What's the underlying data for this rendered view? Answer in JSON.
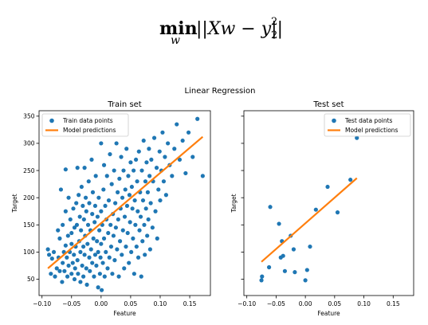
{
  "formula": {
    "op": "min",
    "sub": "w",
    "body": "||Xw − y||",
    "sup": "2",
    "sub2": "2"
  },
  "suptitle": "Linear Regression",
  "colors": {
    "points": "#1f77b4",
    "line": "#ff7f0e",
    "axis": "#000000"
  },
  "chart_data": [
    {
      "type": "scatter",
      "title": "Train set",
      "xlabel": "Feature",
      "ylabel": "Target",
      "xlim": [
        -0.105,
        0.185
      ],
      "ylim": [
        20,
        360
      ],
      "xticks": [
        -0.1,
        -0.05,
        0.0,
        0.05,
        0.1,
        0.15
      ],
      "xtick_labels": [
        "−0.10",
        "−0.05",
        "0.00",
        "0.05",
        "0.10",
        "0.15"
      ],
      "yticks": [
        50,
        100,
        150,
        200,
        250,
        300,
        350
      ],
      "ytick_labels": [
        "50",
        "100",
        "150",
        "200",
        "250",
        "300",
        "350"
      ],
      "legend": {
        "position": "top-left",
        "entries": [
          "Train data points",
          "Model predictions"
        ]
      },
      "series": [
        {
          "name": "Train data points",
          "kind": "points",
          "points": [
            [
              -0.09,
              105
            ],
            [
              -0.088,
              95
            ],
            [
              -0.085,
              60
            ],
            [
              -0.083,
              88
            ],
            [
              -0.08,
              100
            ],
            [
              -0.078,
              55
            ],
            [
              -0.075,
              70
            ],
            [
              -0.073,
              140
            ],
            [
              -0.072,
              90
            ],
            [
              -0.07,
              65
            ],
            [
              -0.07,
              125
            ],
            [
              -0.068,
              215
            ],
            [
              -0.066,
              45
            ],
            [
              -0.065,
              150
            ],
            [
              -0.065,
              80
            ],
            [
              -0.063,
              100
            ],
            [
              -0.062,
              65
            ],
            [
              -0.06,
              175
            ],
            [
              -0.06,
              112
            ],
            [
              -0.06,
              252
            ],
            [
              -0.058,
              90
            ],
            [
              -0.057,
              55
            ],
            [
              -0.056,
              130
            ],
            [
              -0.055,
              200
            ],
            [
              -0.055,
              75
            ],
            [
              -0.053,
              100
            ],
            [
              -0.052,
              160
            ],
            [
              -0.05,
              115
            ],
            [
              -0.05,
              60
            ],
            [
              -0.05,
              135
            ],
            [
              -0.048,
              80
            ],
            [
              -0.047,
              180
            ],
            [
              -0.046,
              95
            ],
            [
              -0.045,
              145
            ],
            [
              -0.045,
              50
            ],
            [
              -0.044,
              70
            ],
            [
              -0.043,
              110
            ],
            [
              -0.042,
              190
            ],
            [
              -0.041,
              150
            ],
            [
              -0.04,
              85
            ],
            [
              -0.04,
              255
            ],
            [
              -0.039,
              60
            ],
            [
              -0.038,
              205
            ],
            [
              -0.037,
              120
            ],
            [
              -0.036,
              165
            ],
            [
              -0.035,
              45
            ],
            [
              -0.035,
              100
            ],
            [
              -0.034,
              140
            ],
            [
              -0.033,
              220
            ],
            [
              -0.032,
              75
            ],
            [
              -0.031,
              185
            ],
            [
              -0.03,
              110
            ],
            [
              -0.03,
              55
            ],
            [
              -0.029,
              160
            ],
            [
              -0.028,
              95
            ],
            [
              -0.028,
              255
            ],
            [
              -0.027,
              130
            ],
            [
              -0.026,
              200
            ],
            [
              -0.025,
              70
            ],
            [
              -0.025,
              175
            ],
            [
              -0.024,
              40
            ],
            [
              -0.023,
              115
            ],
            [
              -0.022,
              150
            ],
            [
              -0.021,
              230
            ],
            [
              -0.02,
              90
            ],
            [
              -0.02,
              190
            ],
            [
              -0.019,
              65
            ],
            [
              -0.018,
              140
            ],
            [
              -0.017,
              105
            ],
            [
              -0.016,
              270
            ],
            [
              -0.015,
              170
            ],
            [
              -0.015,
              80
            ],
            [
              -0.014,
              210
            ],
            [
              -0.013,
              125
            ],
            [
              -0.012,
              55
            ],
            [
              -0.011,
              155
            ],
            [
              -0.01,
              95
            ],
            [
              -0.01,
              185
            ],
            [
              -0.009,
              240
            ],
            [
              -0.008,
              75
            ],
            [
              -0.007,
              120
            ],
            [
              -0.006,
              165
            ],
            [
              -0.005,
              35
            ],
            [
              -0.005,
              100
            ],
            [
              -0.004,
              200
            ],
            [
              -0.003,
              140
            ],
            [
              -0.002,
              60
            ],
            [
              -0.001,
              90
            ],
            [
              0.0,
              175
            ],
            [
              0.0,
              115
            ],
            [
              0.0,
              300
            ],
            [
              0.001,
              30
            ],
            [
              0.002,
              150
            ],
            [
              0.003,
              80
            ],
            [
              0.004,
              215
            ],
            [
              0.005,
              125
            ],
            [
              0.005,
              260
            ],
            [
              0.006,
              55
            ],
            [
              0.007,
              185
            ],
            [
              0.008,
              100
            ],
            [
              0.009,
              160
            ],
            [
              0.01,
              240
            ],
            [
              0.011,
              70
            ],
            [
              0.012,
              135
            ],
            [
              0.013,
              195
            ],
            [
              0.014,
              90
            ],
            [
              0.015,
              280
            ],
            [
              0.016,
              150
            ],
            [
              0.017,
              110
            ],
            [
              0.018,
              225
            ],
            [
              0.019,
              60
            ],
            [
              0.02,
              170
            ],
            [
              0.021,
              130
            ],
            [
              0.022,
              250
            ],
            [
              0.023,
              85
            ],
            [
              0.024,
              190
            ],
            [
              0.025,
              145
            ],
            [
              0.026,
              300
            ],
            [
              0.027,
              105
            ],
            [
              0.028,
              210
            ],
            [
              0.029,
              160
            ],
            [
              0.03,
              55
            ],
            [
              0.031,
              235
            ],
            [
              0.032,
              120
            ],
            [
              0.033,
              180
            ],
            [
              0.034,
              275
            ],
            [
              0.035,
              95
            ],
            [
              0.036,
              200
            ],
            [
              0.037,
              140
            ],
            [
              0.038,
              250
            ],
            [
              0.039,
              70
            ],
            [
              0.04,
              165
            ],
            [
              0.041,
              215
            ],
            [
              0.042,
              110
            ],
            [
              0.043,
              290
            ],
            [
              0.044,
              185
            ],
            [
              0.045,
              135
            ],
            [
              0.046,
              240
            ],
            [
              0.047,
              80
            ],
            [
              0.048,
              205
            ],
            [
              0.049,
              155
            ],
            [
              0.05,
              265
            ],
            [
              0.051,
              100
            ],
            [
              0.052,
              220
            ],
            [
              0.053,
              180
            ],
            [
              0.054,
              125
            ],
            [
              0.055,
              250
            ],
            [
              0.056,
              60
            ],
            [
              0.057,
              195
            ],
            [
              0.058,
              150
            ],
            [
              0.059,
              270
            ],
            [
              0.06,
              110
            ],
            [
              0.061,
              230
            ],
            [
              0.062,
              175
            ],
            [
              0.063,
              90
            ],
            [
              0.064,
              285
            ],
            [
              0.065,
              140
            ],
            [
              0.066,
              210
            ],
            [
              0.067,
              165
            ],
            [
              0.068,
              55
            ],
            [
              0.069,
              250
            ],
            [
              0.07,
              120
            ],
            [
              0.071,
              195
            ],
            [
              0.072,
              305
            ],
            [
              0.073,
              150
            ],
            [
              0.074,
              95
            ],
            [
              0.075,
              230
            ],
            [
              0.076,
              180
            ],
            [
              0.077,
              265
            ],
            [
              0.078,
              130
            ],
            [
              0.079,
              210
            ],
            [
              0.08,
              160
            ],
            [
              0.081,
              290
            ],
            [
              0.082,
              240
            ],
            [
              0.083,
              105
            ],
            [
              0.084,
              190
            ],
            [
              0.085,
              270
            ],
            [
              0.087,
              145
            ],
            [
              0.088,
              230
            ],
            [
              0.09,
              310
            ],
            [
              0.092,
              175
            ],
            [
              0.094,
              255
            ],
            [
              0.095,
              125
            ],
            [
              0.097,
              215
            ],
            [
              0.099,
              285
            ],
            [
              0.1,
              195
            ],
            [
              0.102,
              250
            ],
            [
              0.104,
              320
            ],
            [
              0.106,
              230
            ],
            [
              0.108,
              275
            ],
            [
              0.11,
              205
            ],
            [
              0.113,
              300
            ],
            [
              0.116,
              260
            ],
            [
              0.12,
              240
            ],
            [
              0.124,
              290
            ],
            [
              0.128,
              335
            ],
            [
              0.133,
              270
            ],
            [
              0.138,
              305
            ],
            [
              0.143,
              245
            ],
            [
              0.148,
              320
            ],
            [
              0.155,
              275
            ],
            [
              0.163,
              345
            ],
            [
              0.172,
              240
            ]
          ]
        },
        {
          "name": "Model predictions",
          "kind": "line",
          "points": [
            [
              -0.09,
              70
            ],
            [
              0.172,
              312
            ]
          ]
        }
      ]
    },
    {
      "type": "scatter",
      "title": "Test set",
      "xlabel": "Feature",
      "ylabel": "",
      "xlim": [
        -0.105,
        0.185
      ],
      "ylim": [
        20,
        360
      ],
      "xticks": [
        -0.1,
        -0.05,
        0.0,
        0.05,
        0.1,
        0.15
      ],
      "xtick_labels": [
        "−0.10",
        "−0.05",
        "0.00",
        "0.05",
        "0.10",
        "0.15"
      ],
      "yticks": [
        50,
        100,
        150,
        200,
        250,
        300,
        350
      ],
      "ytick_labels": [],
      "legend": {
        "position": "top-right",
        "entries": [
          "Test data points",
          "Model predictions"
        ]
      },
      "series": [
        {
          "name": "Test data points",
          "kind": "points",
          "points": [
            [
              -0.075,
              48
            ],
            [
              -0.074,
              55
            ],
            [
              -0.062,
              72
            ],
            [
              -0.06,
              183
            ],
            [
              -0.045,
              152
            ],
            [
              -0.042,
              90
            ],
            [
              -0.04,
              120
            ],
            [
              -0.038,
              93
            ],
            [
              -0.035,
              65
            ],
            [
              -0.025,
              130
            ],
            [
              -0.02,
              105
            ],
            [
              -0.018,
              63
            ],
            [
              0.0,
              48
            ],
            [
              0.003,
              67
            ],
            [
              0.008,
              110
            ],
            [
              0.018,
              178
            ],
            [
              0.038,
              220
            ],
            [
              0.055,
              173
            ],
            [
              0.077,
              233
            ],
            [
              0.088,
              310
            ]
          ]
        },
        {
          "name": "Model predictions",
          "kind": "line",
          "points": [
            [
              -0.075,
              82
            ],
            [
              0.088,
              236
            ]
          ]
        }
      ]
    }
  ]
}
